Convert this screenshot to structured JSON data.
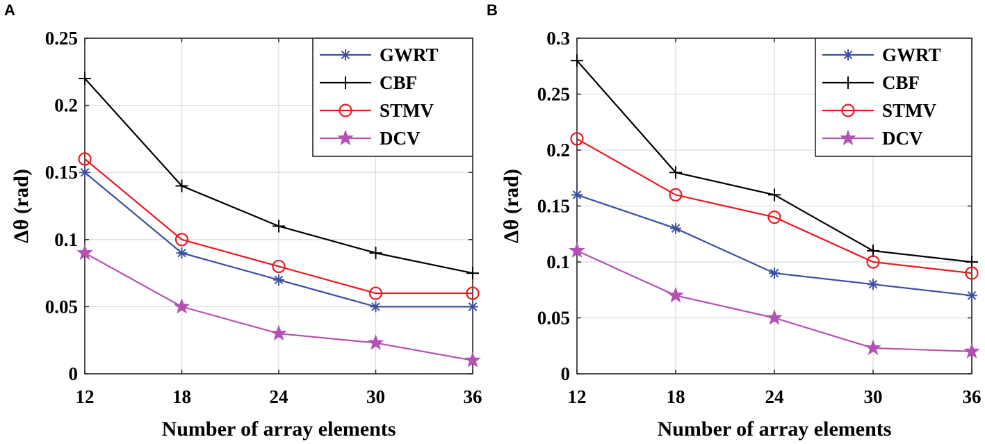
{
  "chart_data": [
    {
      "panel": "A",
      "type": "line",
      "x": [
        12,
        18,
        24,
        30,
        36
      ],
      "xlabel": "Number of array elements",
      "ylabel": "Δθ (rad)",
      "ylim": [
        0,
        0.25
      ],
      "yticks": [
        0,
        0.05,
        0.1,
        0.15,
        0.2,
        0.25
      ],
      "ytick_labels": [
        "0",
        "0.05",
        "0.1",
        "0.15",
        "0.2",
        "0.25"
      ],
      "xticks": [
        12,
        18,
        24,
        30,
        36
      ],
      "xtick_labels": [
        "12",
        "18",
        "24",
        "30",
        "36"
      ],
      "grid": true,
      "legend_position": "top-right",
      "series": [
        {
          "name": "GWRT",
          "marker": "asterisk",
          "color": "#3a4fa0",
          "values": [
            0.15,
            0.09,
            0.07,
            0.05,
            0.05
          ]
        },
        {
          "name": "CBF",
          "marker": "plus",
          "color": "#000000",
          "values": [
            0.22,
            0.14,
            0.11,
            0.09,
            0.075
          ]
        },
        {
          "name": "STMV",
          "marker": "circle",
          "color": "#e8191f",
          "values": [
            0.16,
            0.1,
            0.08,
            0.06,
            0.06
          ]
        },
        {
          "name": "DCV",
          "marker": "star",
          "color": "#b451b4",
          "values": [
            0.09,
            0.05,
            0.03,
            0.023,
            0.01
          ]
        }
      ]
    },
    {
      "panel": "B",
      "type": "line",
      "x": [
        12,
        18,
        24,
        30,
        36
      ],
      "xlabel": "Number of array elements",
      "ylabel": "Δθ (rad)",
      "ylim": [
        0,
        0.3
      ],
      "yticks": [
        0,
        0.05,
        0.1,
        0.15,
        0.2,
        0.25,
        0.3
      ],
      "ytick_labels": [
        "0",
        "0.05",
        "0.1",
        "0.15",
        "0.2",
        "0.25",
        "0.3"
      ],
      "xticks": [
        12,
        18,
        24,
        30,
        36
      ],
      "xtick_labels": [
        "12",
        "18",
        "24",
        "30",
        "36"
      ],
      "grid": true,
      "legend_position": "top-right",
      "series": [
        {
          "name": "GWRT",
          "marker": "asterisk",
          "color": "#3a4fa0",
          "values": [
            0.16,
            0.13,
            0.09,
            0.08,
            0.07
          ]
        },
        {
          "name": "CBF",
          "marker": "plus",
          "color": "#000000",
          "values": [
            0.28,
            0.18,
            0.16,
            0.11,
            0.1
          ]
        },
        {
          "name": "STMV",
          "marker": "circle",
          "color": "#e8191f",
          "values": [
            0.21,
            0.16,
            0.14,
            0.1,
            0.09
          ]
        },
        {
          "name": "DCV",
          "marker": "star",
          "color": "#b451b4",
          "values": [
            0.11,
            0.07,
            0.05,
            0.023,
            0.02
          ]
        }
      ]
    }
  ]
}
